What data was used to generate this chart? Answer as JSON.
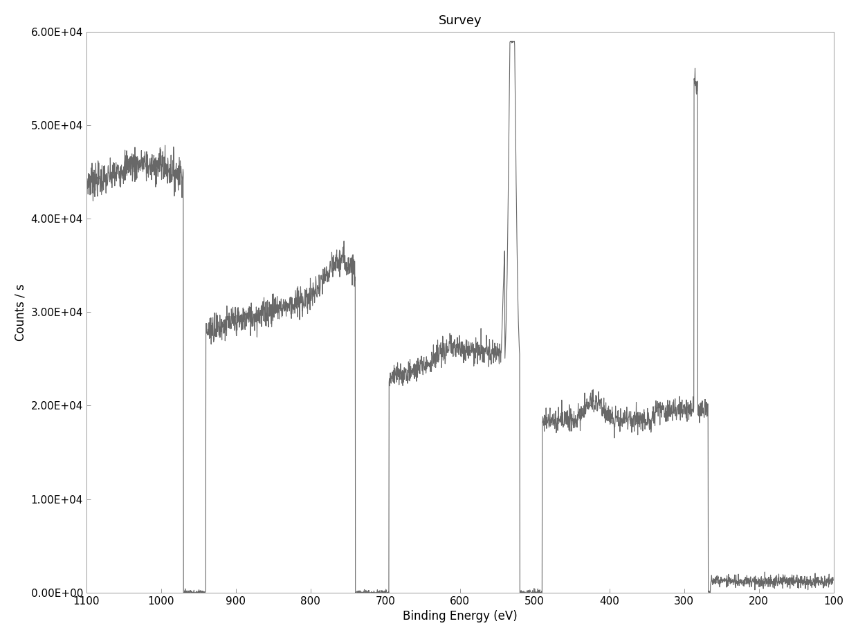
{
  "title": "Survey",
  "xlabel": "Binding Energy (eV)",
  "ylabel": "Counts / s",
  "xlim": [
    1100,
    100
  ],
  "ylim": [
    0,
    60000
  ],
  "yticks": [
    0,
    10000,
    20000,
    30000,
    40000,
    50000,
    60000
  ],
  "ytick_labels": [
    "0.00E+00",
    "1.00E+04",
    "2.00E+04",
    "3.00E+04",
    "4.00E+04",
    "5.00E+04",
    "6.00E+04"
  ],
  "xticks": [
    1100,
    1000,
    900,
    800,
    700,
    600,
    500,
    400,
    300,
    200,
    100
  ],
  "line_color": "#606060",
  "background_color": "#ffffff",
  "title_fontsize": 13,
  "axis_fontsize": 12,
  "tick_fontsize": 11
}
